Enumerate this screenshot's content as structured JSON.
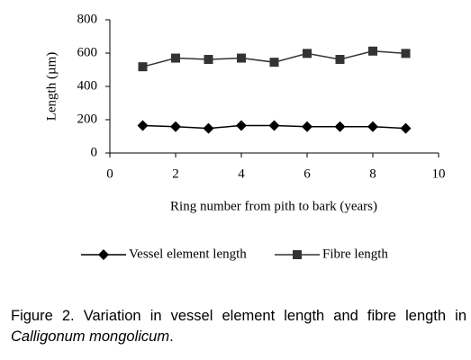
{
  "chart_data": {
    "type": "line",
    "x_label": "Ring number from pith to bark (years)",
    "y_label": "Length (µm)",
    "x": [
      1,
      2,
      3,
      4,
      5,
      6,
      7,
      8,
      9
    ],
    "series": [
      {
        "name": "Vessel element length",
        "color": "#000000",
        "marker": "diamond",
        "values": [
          165,
          158,
          148,
          165,
          165,
          158,
          158,
          158,
          148
        ]
      },
      {
        "name": "Fibre length",
        "color": "#333333",
        "marker": "square",
        "values": [
          518,
          570,
          562,
          570,
          545,
          598,
          562,
          612,
          598
        ]
      }
    ],
    "xlim": [
      0,
      10
    ],
    "xticks": [
      0,
      2,
      4,
      6,
      8,
      10
    ],
    "ylim": [
      0,
      800
    ],
    "yticks": [
      0,
      200,
      400,
      600,
      800
    ],
    "legend": "bottom"
  },
  "caption": {
    "text": "Figure 2. Variation in vessel element length and fibre length in ",
    "species": "Calligonum mongolicum",
    "end": "."
  }
}
